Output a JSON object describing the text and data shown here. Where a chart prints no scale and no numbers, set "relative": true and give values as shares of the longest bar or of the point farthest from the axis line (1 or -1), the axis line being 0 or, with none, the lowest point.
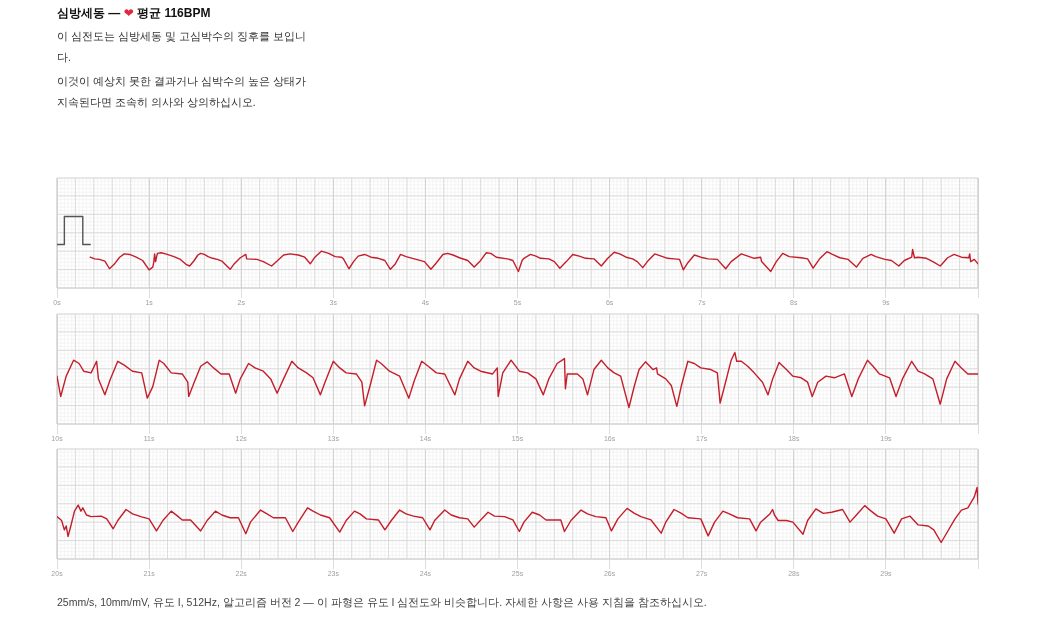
{
  "chart_data": [
    {
      "type": "line",
      "title": "심방세동 — ❤ 평균 116BPM",
      "subtitle": "이 심전도는 심방세동 및 고심박수의 징후를 보입니다.\n이것이 예상치 못한 결과거나 심박수의 높은 상태가 지속된다면 조속히 의사와 상의하십시오.",
      "relative": true,
      "xlim": [
        0,
        10
      ],
      "xticks": [
        {
          "value": 0,
          "label": "0s"
        },
        {
          "value": 1,
          "label": "1s"
        },
        {
          "value": 2,
          "label": "2s"
        },
        {
          "value": 3,
          "label": "3s"
        },
        {
          "value": 4,
          "label": "4s"
        },
        {
          "value": 5,
          "label": "5s"
        },
        {
          "value": 6,
          "label": "6s"
        },
        {
          "value": 7,
          "label": "7s"
        },
        {
          "value": 8,
          "label": "8s"
        },
        {
          "value": 9,
          "label": "9s"
        },
        {
          "value": 10,
          "label": null
        }
      ],
      "grid": true,
      "series": [
        {
          "color": "#555555",
          "x": [
            0,
            0.08,
            0.08,
            0.28,
            0.28,
            0.36
          ],
          "values": [
            0.49,
            0.49,
            1,
            1,
            0.49,
            0.49
          ]
        },
        {
          "color": "#c41e2a",
          "x": [
            0.36,
            0.41,
            0.46,
            0.52,
            0.57,
            0.62,
            0.68,
            0.73,
            0.79,
            0.86,
            0.93,
            1.0,
            1.04,
            1.05,
            1.06,
            1.07,
            1.09,
            1.13,
            1.18,
            1.27,
            1.34,
            1.4,
            1.44,
            1.49,
            1.53,
            1.56,
            1.6,
            1.64,
            1.69,
            1.74,
            1.79,
            1.88,
            1.92,
            1.99,
            2.05,
            2.06,
            2.17,
            2.24,
            2.33,
            2.39,
            2.46,
            2.53,
            2.62,
            2.69,
            2.75,
            2.8,
            2.87,
            2.95,
            3.02,
            3.09,
            3.11,
            3.17,
            3.22,
            3.27,
            3.34,
            3.41,
            3.49,
            3.56,
            3.62,
            3.67,
            3.73,
            3.79,
            3.88,
            3.99,
            4.06,
            4.12,
            4.19,
            4.24,
            4.3,
            4.37,
            4.46,
            4.53,
            4.59,
            4.66,
            4.71,
            4.77,
            4.89,
            4.95,
            4.98,
            5.01,
            5.05,
            5.07,
            5.14,
            5.2,
            5.25,
            5.34,
            5.4,
            5.46,
            5.53,
            5.6,
            5.67,
            5.74,
            5.83,
            5.91,
            5.98,
            6.05,
            6.11,
            6.18,
            6.25,
            6.3,
            6.36,
            6.41,
            6.49,
            6.56,
            6.63,
            6.7,
            6.76,
            6.8,
            6.85,
            6.92,
            6.99,
            7.07,
            7.17,
            7.26,
            7.32,
            7.43,
            7.5,
            7.57,
            7.64,
            7.65,
            7.75,
            7.81,
            7.88,
            7.95,
            8.08,
            8.15,
            8.21,
            8.28,
            8.36,
            8.42,
            8.5,
            8.59,
            8.68,
            8.75,
            8.84,
            8.89,
            8.99,
            9.06,
            9.14,
            9.2,
            9.28,
            9.29,
            9.31,
            9.35,
            9.44,
            9.51,
            9.59,
            9.67,
            9.74,
            9.82,
            9.9,
            9.91,
            9.92,
            9.96,
            10.0
          ],
          "values": [
            0.26,
            0.23,
            0.22,
            0.19,
            0.05,
            0.13,
            0.26,
            0.32,
            0.31,
            0.26,
            0.2,
            0.03,
            0.08,
            0.16,
            0.32,
            0.18,
            0.33,
            0.34,
            0.32,
            0.27,
            0.22,
            0.13,
            0.1,
            0.2,
            0.3,
            0.33,
            0.31,
            0.27,
            0.24,
            0.22,
            0.19,
            0.04,
            0.13,
            0.25,
            0.31,
            0.23,
            0.22,
            0.18,
            0.1,
            0.19,
            0.3,
            0.32,
            0.3,
            0.26,
            0.14,
            0.26,
            0.37,
            0.33,
            0.27,
            0.26,
            0.23,
            0.05,
            0.18,
            0.28,
            0.31,
            0.26,
            0.24,
            0.2,
            0.04,
            0.13,
            0.31,
            0.27,
            0.23,
            0.18,
            0.04,
            0.16,
            0.31,
            0.33,
            0.3,
            0.25,
            0.2,
            0.08,
            0.18,
            0.34,
            0.33,
            0.26,
            0.23,
            0.2,
            0.1,
            0,
            0.2,
            0.24,
            0.31,
            0.28,
            0.24,
            0.23,
            0.18,
            0.06,
            0.18,
            0.31,
            0.28,
            0.24,
            0.23,
            0.1,
            0.24,
            0.35,
            0.32,
            0.26,
            0.23,
            0.18,
            0.07,
            0.18,
            0.32,
            0.28,
            0.24,
            0.23,
            0.22,
            0.03,
            0.16,
            0.3,
            0.26,
            0.23,
            0.22,
            0.05,
            0.18,
            0.32,
            0.28,
            0.24,
            0.26,
            0.18,
            0,
            0.18,
            0.33,
            0.27,
            0.25,
            0.23,
            0.06,
            0.23,
            0.36,
            0.31,
            0.25,
            0.22,
            0.08,
            0.24,
            0.31,
            0.27,
            0.22,
            0.2,
            0.1,
            0.2,
            0.26,
            0.4,
            0.25,
            0.26,
            0.24,
            0.18,
            0.1,
            0.25,
            0.31,
            0.26,
            0.25,
            0.32,
            0.18,
            0.22,
            0.14
          ]
        }
      ]
    },
    {
      "type": "line",
      "relative": true,
      "xlim": [
        10,
        20
      ],
      "xticks": [
        {
          "value": 10,
          "label": "10s"
        },
        {
          "value": 11,
          "label": "11s"
        },
        {
          "value": 12,
          "label": "12s"
        },
        {
          "value": 13,
          "label": "13s"
        },
        {
          "value": 14,
          "label": "14s"
        },
        {
          "value": 15,
          "label": "15s"
        },
        {
          "value": 16,
          "label": "16s"
        },
        {
          "value": 17,
          "label": "17s"
        },
        {
          "value": 18,
          "label": "18s"
        },
        {
          "value": 19,
          "label": "19s"
        },
        {
          "value": 20,
          "label": null
        }
      ],
      "grid": true,
      "series": [
        {
          "color": "#c41e2a",
          "x": [
            10.0,
            10.04,
            10.1,
            10.18,
            10.24,
            10.29,
            10.37,
            10.43,
            10.45,
            10.52,
            10.58,
            10.66,
            10.73,
            10.82,
            10.92,
            10.98,
            11.04,
            11.11,
            11.16,
            11.24,
            11.36,
            11.42,
            11.43,
            11.49,
            11.56,
            11.63,
            11.7,
            11.78,
            11.87,
            11.94,
            11.99,
            12.08,
            12.15,
            12.24,
            12.32,
            12.39,
            12.46,
            12.55,
            12.62,
            12.71,
            12.78,
            12.86,
            12.91,
            13.0,
            13.07,
            13.14,
            13.25,
            13.31,
            13.34,
            13.4,
            13.47,
            13.52,
            13.61,
            13.72,
            13.82,
            13.88,
            13.96,
            14.03,
            14.12,
            14.21,
            14.32,
            14.37,
            14.46,
            14.53,
            14.6,
            14.73,
            14.78,
            14.79,
            14.84,
            14.93,
            15.02,
            15.11,
            15.2,
            15.28,
            15.34,
            15.43,
            15.51,
            15.52,
            15.54,
            15.65,
            15.71,
            15.76,
            15.83,
            15.91,
            15.98,
            16.05,
            16.12,
            16.21,
            16.27,
            16.32,
            16.39,
            16.47,
            16.51,
            16.52,
            16.61,
            16.67,
            16.73,
            16.78,
            16.85,
            16.92,
            16.99,
            17.1,
            17.17,
            17.2,
            17.25,
            17.32,
            17.36,
            17.38,
            17.43,
            17.5,
            17.57,
            17.66,
            17.72,
            17.77,
            17.84,
            17.92,
            17.99,
            18.08,
            18.15,
            18.2,
            18.26,
            18.35,
            18.44,
            18.55,
            18.63,
            18.7,
            18.8,
            18.86,
            18.93,
            19.04,
            19.11,
            19.18,
            19.28,
            19.35,
            19.42,
            19.51,
            19.59,
            19.66,
            19.75,
            19.82,
            19.89,
            20.0
          ],
          "values": [
            0.57,
            0.2,
            0.57,
            0.86,
            0.8,
            0.66,
            0.63,
            0.84,
            0.52,
            0.23,
            0.52,
            0.84,
            0.77,
            0.66,
            0.63,
            0.17,
            0.38,
            0.86,
            0.8,
            0.63,
            0.61,
            0.46,
            0.2,
            0.46,
            0.75,
            0.83,
            0.72,
            0.61,
            0.61,
            0.26,
            0.52,
            0.8,
            0.72,
            0.66,
            0.52,
            0.26,
            0.52,
            0.84,
            0.72,
            0.63,
            0.54,
            0.23,
            0.46,
            0.84,
            0.72,
            0.63,
            0.61,
            0.46,
            0.03,
            0.4,
            0.86,
            0.8,
            0.66,
            0.57,
            0.17,
            0.49,
            0.84,
            0.75,
            0.63,
            0.61,
            0.23,
            0.52,
            0.84,
            0.72,
            0.66,
            0.61,
            0.72,
            0.2,
            0.63,
            0.86,
            0.66,
            0.63,
            0.52,
            0.23,
            0.52,
            0.8,
            0.89,
            0.34,
            0.61,
            0.61,
            0.52,
            0.23,
            0.69,
            0.86,
            0.72,
            0.63,
            0.57,
            0,
            0.4,
            0.69,
            0.83,
            0.69,
            0.72,
            0.61,
            0.52,
            0.4,
            0.02,
            0.4,
            0.84,
            0.8,
            0.72,
            0.69,
            0.63,
            0.08,
            0.4,
            0.86,
            1,
            0.84,
            0.84,
            0.75,
            0.63,
            0.46,
            0.23,
            0.52,
            0.82,
            0.69,
            0.57,
            0.54,
            0.46,
            0.2,
            0.46,
            0.57,
            0.54,
            0.61,
            0.2,
            0.52,
            0.86,
            0.75,
            0.61,
            0.54,
            0.2,
            0.52,
            0.84,
            0.66,
            0.61,
            0.52,
            0.06,
            0.52,
            0.84,
            0.72,
            0.61,
            0.61
          ]
        }
      ]
    },
    {
      "type": "line",
      "relative": true,
      "xlim": [
        20,
        30
      ],
      "xticks": [
        {
          "value": 20,
          "label": "20s"
        },
        {
          "value": 21,
          "label": "21s"
        },
        {
          "value": 22,
          "label": "22s"
        },
        {
          "value": 23,
          "label": "23s"
        },
        {
          "value": 24,
          "label": "24s"
        },
        {
          "value": 25,
          "label": "25s"
        },
        {
          "value": 26,
          "label": "26s"
        },
        {
          "value": 27,
          "label": "27s"
        },
        {
          "value": 28,
          "label": "28s"
        },
        {
          "value": 29,
          "label": "29s"
        },
        {
          "value": 30,
          "label": null
        }
      ],
      "grid": true,
      "annotations": [
        "25mm/s, 10mm/mV, 유도 I, 512Hz, 알고리즘 버전 2 — 이 파형은 유도 I 심전도와 비슷합니다. 자세한 사항은 사용 지침을 참조하십시오."
      ],
      "series": [
        {
          "color": "#c41e2a",
          "x": [
            20.0,
            20.05,
            20.08,
            20.1,
            20.12,
            20.15,
            20.19,
            20.23,
            20.26,
            20.28,
            20.32,
            20.37,
            20.48,
            20.54,
            20.61,
            20.66,
            20.75,
            20.82,
            20.91,
            21.0,
            21.08,
            21.15,
            21.24,
            21.31,
            21.36,
            21.45,
            21.56,
            21.63,
            21.72,
            21.79,
            21.88,
            21.97,
            22.05,
            22.1,
            22.21,
            22.28,
            22.35,
            22.48,
            22.56,
            22.62,
            22.72,
            22.78,
            22.86,
            22.96,
            23.07,
            23.14,
            23.23,
            23.29,
            23.36,
            23.49,
            23.56,
            23.63,
            23.72,
            23.79,
            23.87,
            23.97,
            24.05,
            24.1,
            24.21,
            24.28,
            24.37,
            24.46,
            24.53,
            24.6,
            24.68,
            24.75,
            24.86,
            24.95,
            25.02,
            25.07,
            25.16,
            25.24,
            25.31,
            25.47,
            25.51,
            25.58,
            25.69,
            25.76,
            25.85,
            25.96,
            26.02,
            26.09,
            26.19,
            26.27,
            26.34,
            26.45,
            26.56,
            26.61,
            26.7,
            26.78,
            26.85,
            26.99,
            27.07,
            27.14,
            27.23,
            27.3,
            27.39,
            27.52,
            27.59,
            27.64,
            27.74,
            27.77,
            27.79,
            27.83,
            27.92,
            27.99,
            28.1,
            28.15,
            28.24,
            28.32,
            28.41,
            28.53,
            28.61,
            28.68,
            28.77,
            28.84,
            28.91,
            29.0,
            29.09,
            29.17,
            29.26,
            29.35,
            29.46,
            29.52,
            29.6,
            29.67,
            29.75,
            29.82,
            29.89,
            29.96,
            29.99,
            30.0
          ],
          "values": [
            0.47,
            0.4,
            0.23,
            0.3,
            0.11,
            0.3,
            0.57,
            0.68,
            0.57,
            0.63,
            0.5,
            0.47,
            0.48,
            0.43,
            0.25,
            0.4,
            0.6,
            0.52,
            0.47,
            0.43,
            0.21,
            0.4,
            0.57,
            0.48,
            0.41,
            0.41,
            0.21,
            0.4,
            0.57,
            0.5,
            0.45,
            0.45,
            0.16,
            0.37,
            0.59,
            0.52,
            0.45,
            0.45,
            0.2,
            0.37,
            0.63,
            0.57,
            0.5,
            0.45,
            0.19,
            0.4,
            0.57,
            0.52,
            0.43,
            0.41,
            0.23,
            0.4,
            0.59,
            0.52,
            0.48,
            0.45,
            0.23,
            0.4,
            0.59,
            0.5,
            0.45,
            0.43,
            0.28,
            0.41,
            0.55,
            0.48,
            0.47,
            0.41,
            0.2,
            0.37,
            0.55,
            0.5,
            0.41,
            0.41,
            0.2,
            0.4,
            0.59,
            0.52,
            0.47,
            0.45,
            0.21,
            0.43,
            0.62,
            0.53,
            0.47,
            0.41,
            0.17,
            0.37,
            0.6,
            0.53,
            0.45,
            0.43,
            0.12,
            0.37,
            0.57,
            0.52,
            0.45,
            0.43,
            0.21,
            0.37,
            0.52,
            0.6,
            0.5,
            0.4,
            0.4,
            0.37,
            0.15,
            0.4,
            0.61,
            0.53,
            0.55,
            0.6,
            0.37,
            0.5,
            0.67,
            0.57,
            0.48,
            0.43,
            0.17,
            0.43,
            0.48,
            0.32,
            0.3,
            0.23,
            0,
            0.2,
            0.43,
            0.59,
            0.63,
            0.83,
            1,
            0.7
          ]
        }
      ]
    }
  ]
}
